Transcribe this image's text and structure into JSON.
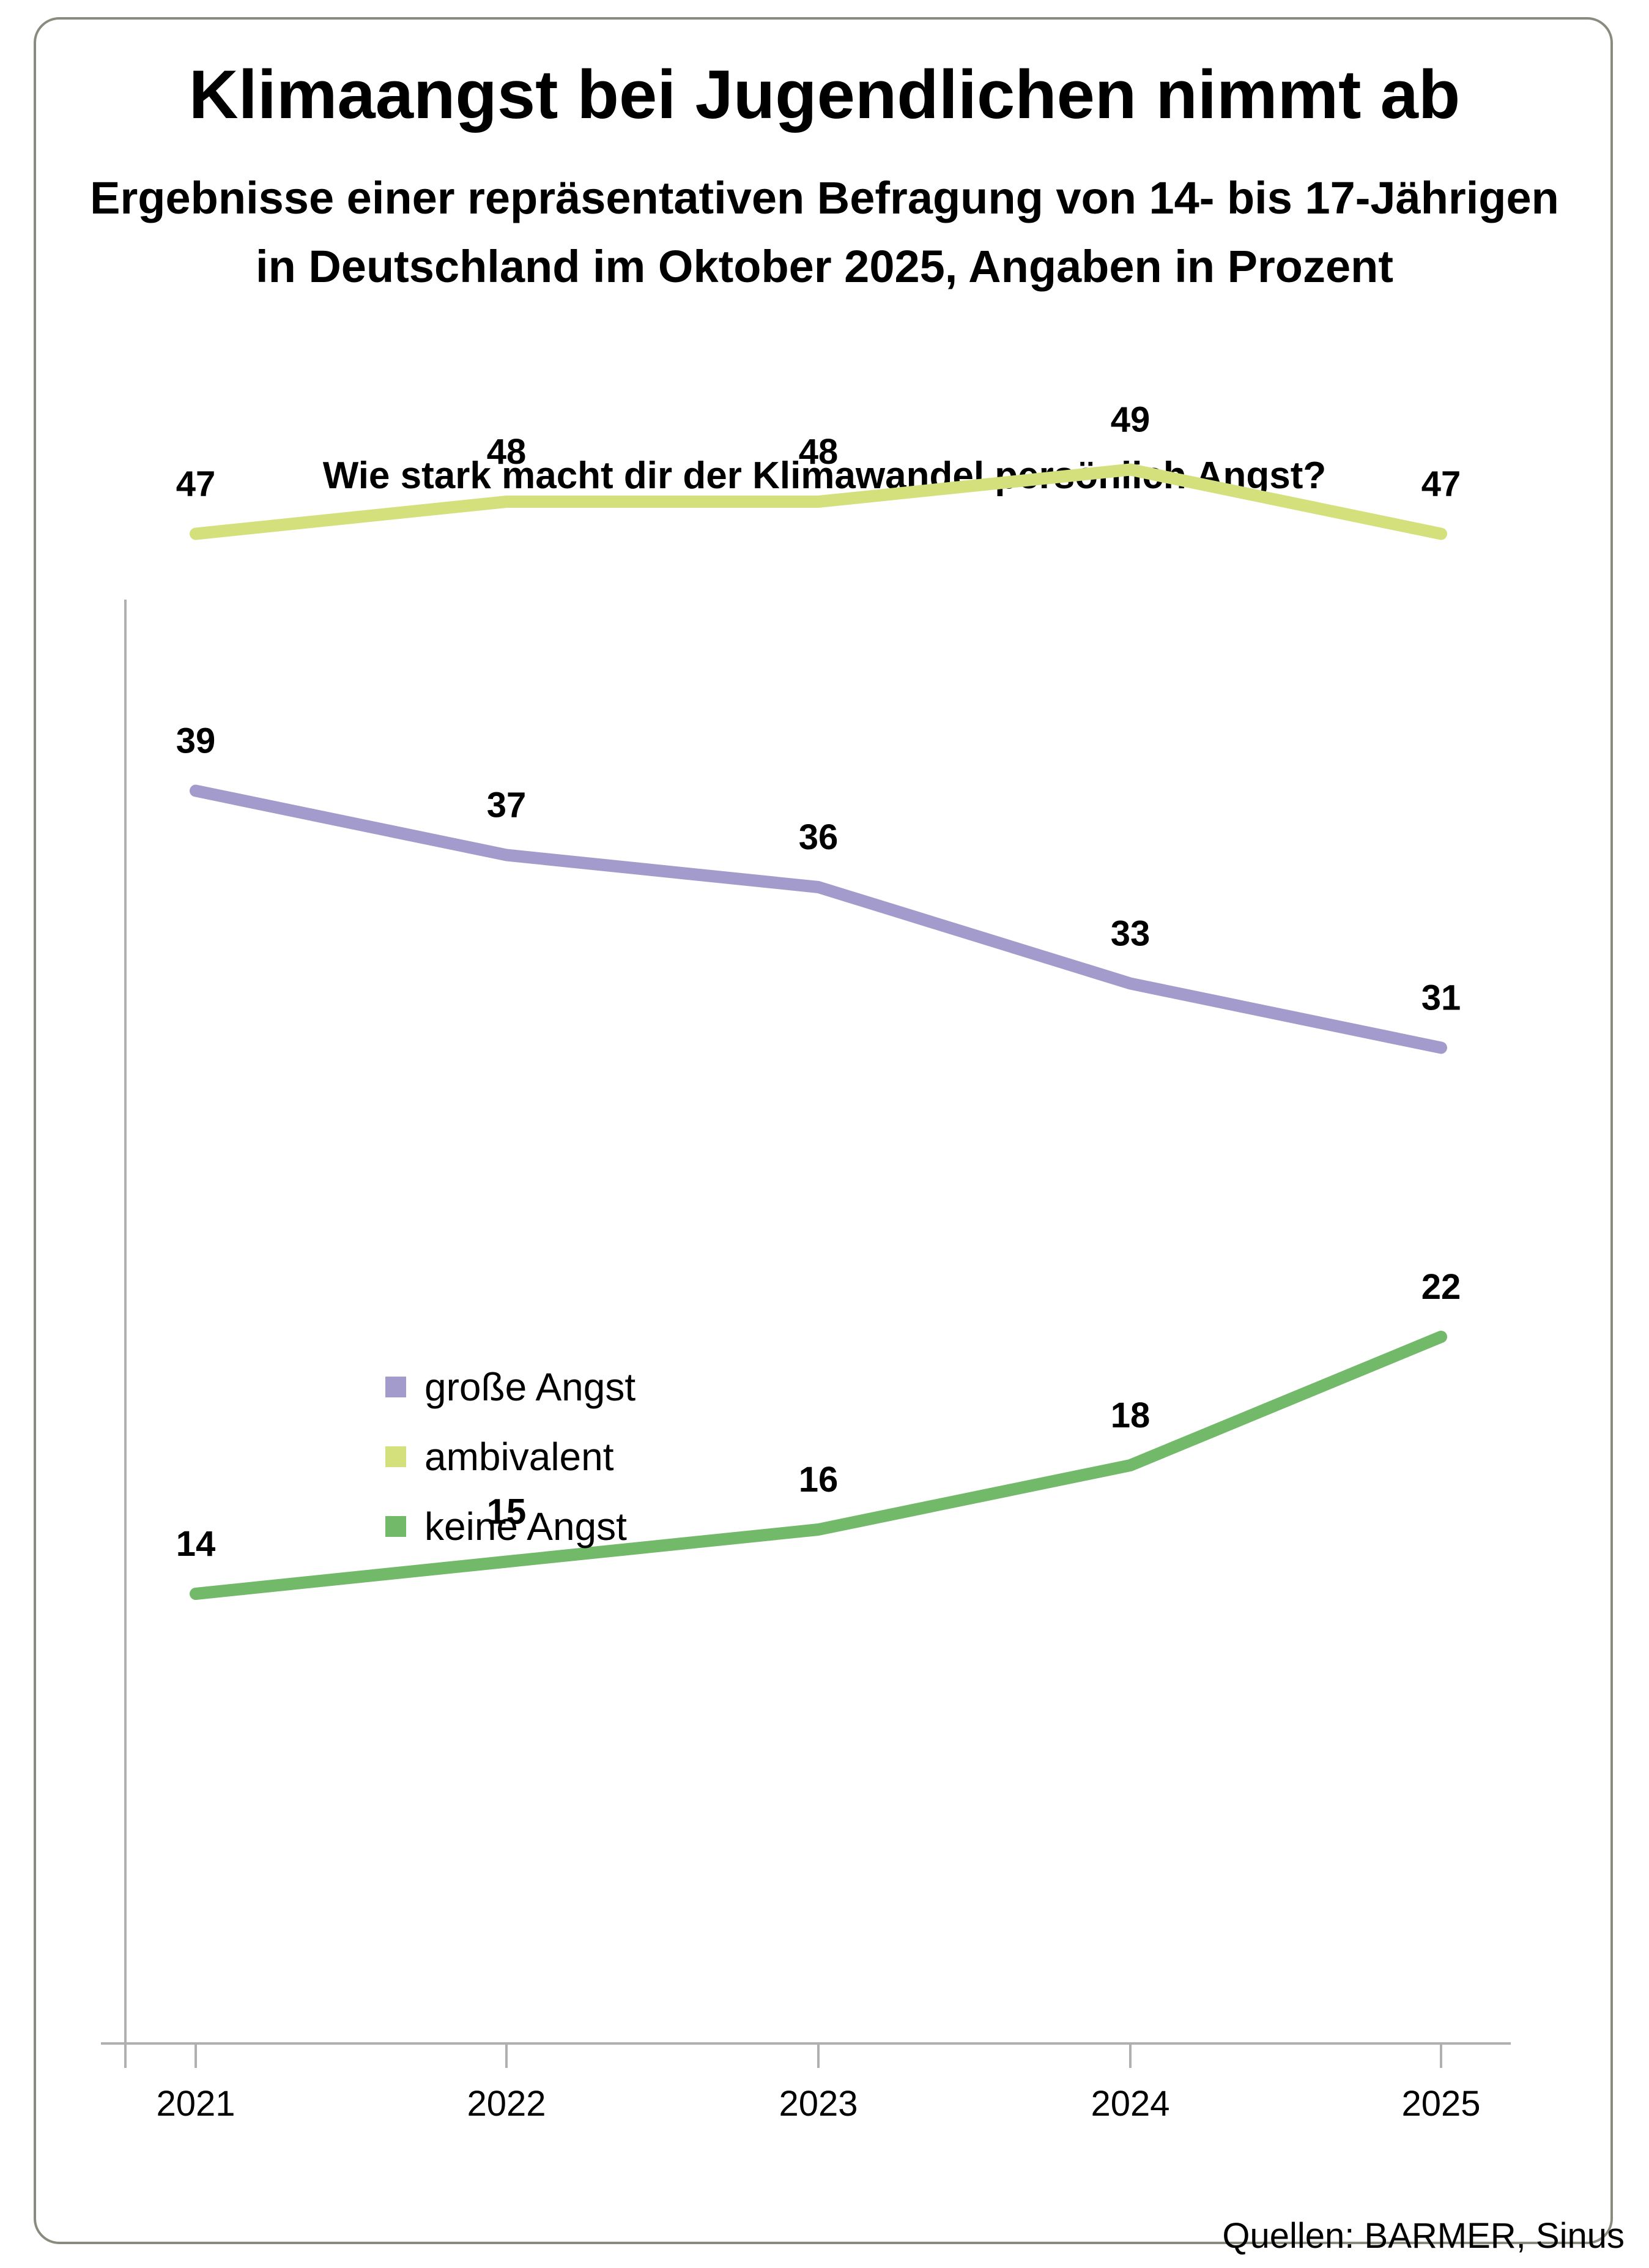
{
  "title": "Klimaangst bei Jugendlichen nimmt ab",
  "subtitle_line1": "Ergebnisse einer repräsentativen Befragung von 14- bis 17-Jährigen",
  "subtitle_line2": "in Deutschland im Oktober 2025, Angaben in Prozent",
  "question": "Wie stark macht dir der Klimawandel persönlich Angst?",
  "source": "Quellen: BARMER, Sinus",
  "chart_data": {
    "type": "line",
    "x": [
      "2021",
      "2022",
      "2023",
      "2024",
      "2025"
    ],
    "ylim": [
      0,
      56
    ],
    "grid": false,
    "legend_placement": "center-left",
    "series": [
      {
        "name": "große Angst",
        "color": "#a39bcc",
        "values": [
          39,
          37,
          36,
          33,
          31
        ]
      },
      {
        "name": "ambivalent",
        "color": "#d4e07c",
        "values": [
          47,
          48,
          48,
          49,
          47
        ]
      },
      {
        "name": "keine Angst",
        "color": "#72b96a",
        "values": [
          14,
          15,
          16,
          18,
          22
        ]
      }
    ]
  }
}
